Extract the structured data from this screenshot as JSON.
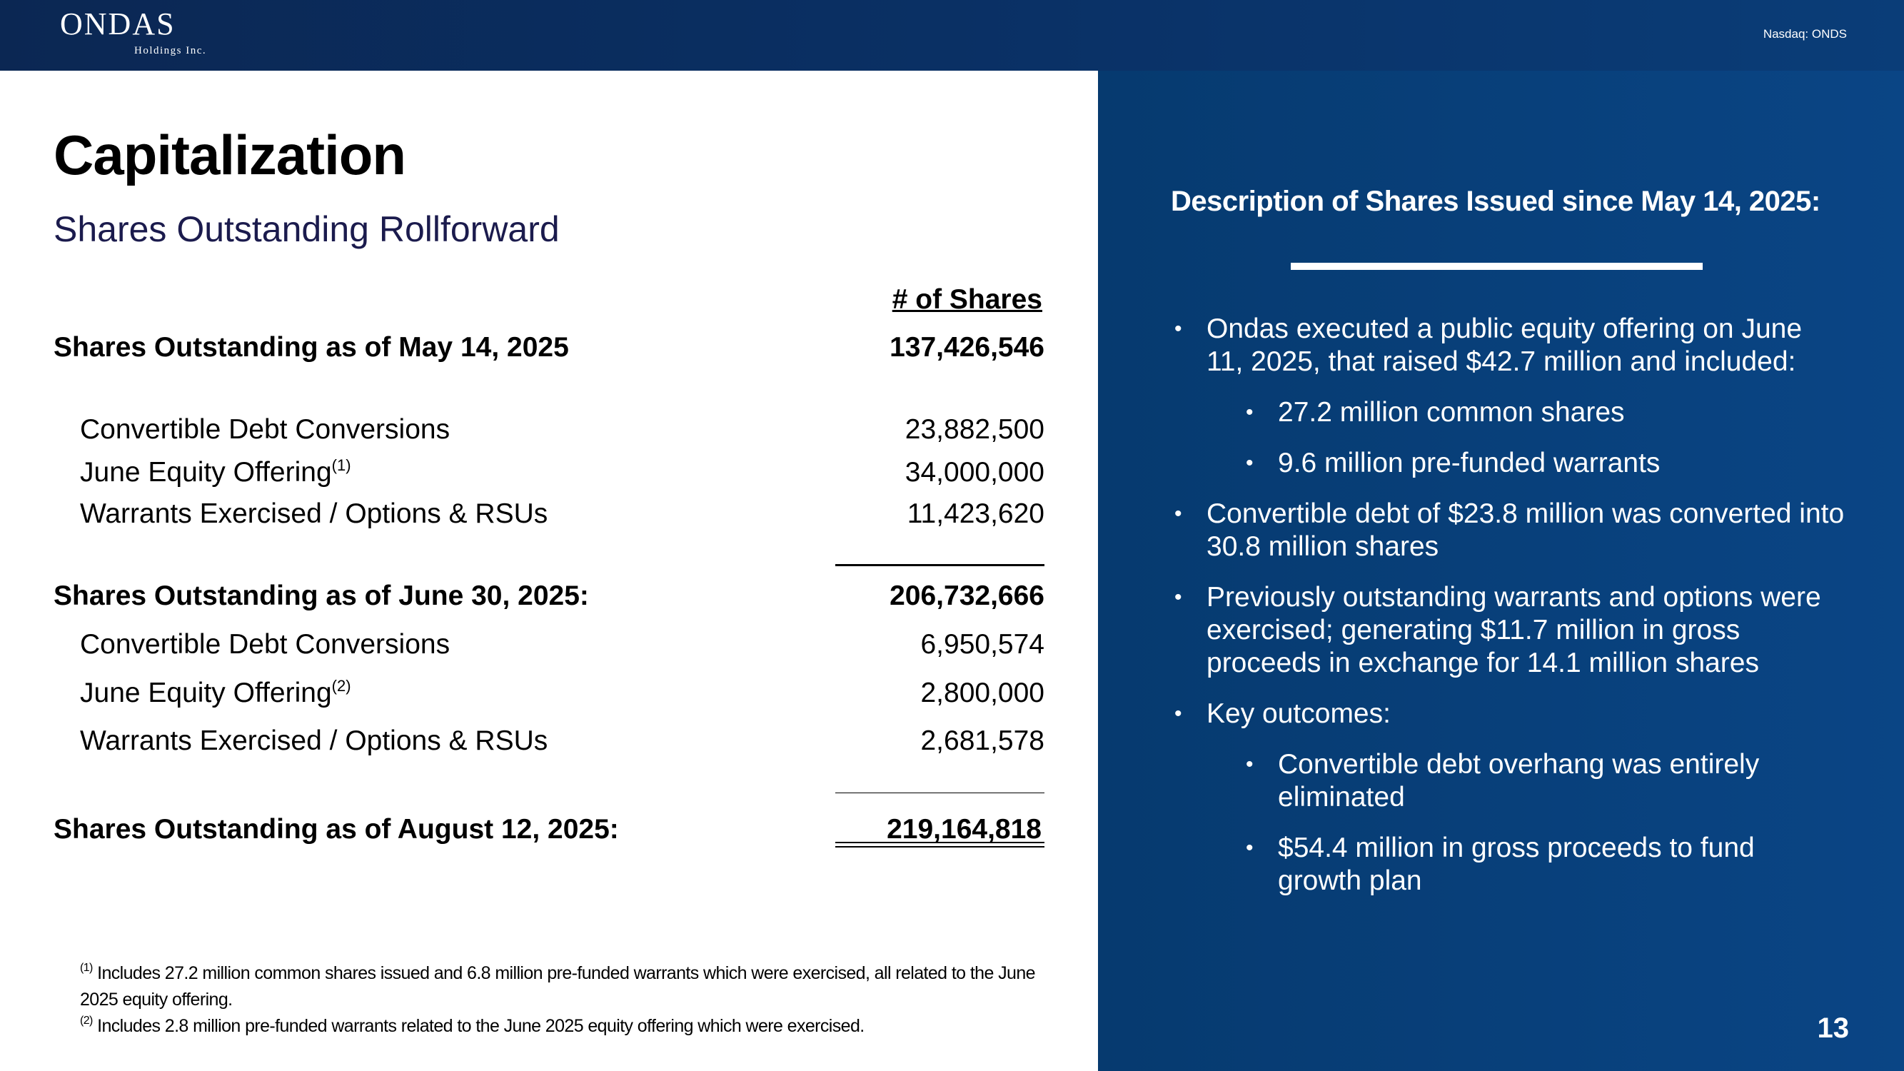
{
  "header": {
    "logo": "ONDAS",
    "logo_sub": "Holdings Inc.",
    "ticker": "Nasdaq: ONDS"
  },
  "title": "Capitalization",
  "subtitle": "Shares Outstanding Rollforward",
  "table": {
    "column_header": "# of Shares",
    "rows": [
      {
        "label": "Shares Outstanding as of May 14, 2025",
        "value": "137,426,546"
      },
      {
        "label": "Convertible Debt Conversions",
        "value": "23,882,500"
      },
      {
        "label": "June Equity Offering",
        "note": "(1)",
        "value": "34,000,000"
      },
      {
        "label": "Warrants Exercised / Options & RSUs",
        "value": "11,423,620"
      },
      {
        "label": "Shares Outstanding as of June 30, 2025:",
        "value": "206,732,666"
      },
      {
        "label": "Convertible Debt Conversions",
        "value": "6,950,574"
      },
      {
        "label": "June Equity Offering",
        "note": "(2)",
        "value": "2,800,000"
      },
      {
        "label": "Warrants Exercised / Options & RSUs",
        "value": "2,681,578"
      },
      {
        "label": "Shares Outstanding as of August 12, 2025:",
        "value": "219,164,818"
      }
    ]
  },
  "footnotes": [
    {
      "mark": "(1)",
      "text": " Includes 27.2 million common shares issued and 6.8 million pre-funded warrants which were exercised, all related to the June 2025 equity offering."
    },
    {
      "mark": "(2)",
      "text": " Includes 2.8 million pre-funded warrants related to the June 2025 equity offering which were exercised."
    }
  ],
  "description": {
    "heading": "Description of Shares Issued since May 14, 2025:",
    "bullet": "•",
    "bullets": [
      "Ondas executed a public equity offering on June 11, 2025, that raised $42.7 million and included:",
      "27.2 million common shares",
      "9.6 million pre-funded warrants",
      "Convertible debt of $23.8 million was converted into 30.8 million shares",
      "Previously outstanding warrants and options were exercised; generating $11.7 million in gross proceeds in exchange for 14.1 million shares",
      "Key outcomes:",
      "Convertible debt overhang was entirely eliminated",
      "$54.4 million in gross proceeds to fund growth plan"
    ]
  },
  "page_number": "13"
}
